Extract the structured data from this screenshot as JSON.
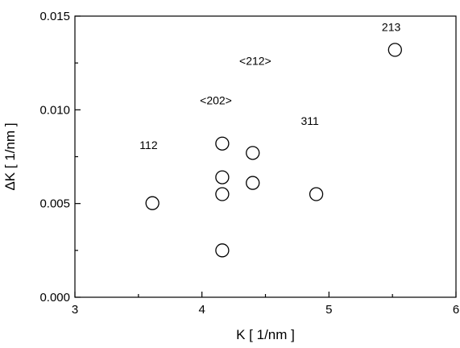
{
  "chart_data": {
    "type": "scatter",
    "xlabel": "K [ 1/nm ]",
    "ylabel": "ΔK [ 1/nm ]",
    "xlim": [
      3,
      6
    ],
    "ylim": [
      0.0,
      0.015
    ],
    "xticks": [
      3,
      4,
      5,
      6
    ],
    "xtick_labels": [
      "3",
      "4",
      "5",
      "6"
    ],
    "yticks": [
      0.0,
      0.005,
      0.01,
      0.015
    ],
    "ytick_labels": [
      "0.000",
      "0.005",
      "0.010",
      "0.015"
    ],
    "grid": false,
    "marker": "open-circle",
    "points": [
      {
        "x": 3.61,
        "y": 0.00502
      },
      {
        "x": 4.16,
        "y": 0.0025
      },
      {
        "x": 4.16,
        "y": 0.0055
      },
      {
        "x": 4.16,
        "y": 0.0064
      },
      {
        "x": 4.16,
        "y": 0.0082
      },
      {
        "x": 4.4,
        "y": 0.0061
      },
      {
        "x": 4.4,
        "y": 0.0077
      },
      {
        "x": 4.9,
        "y": 0.0055
      },
      {
        "x": 5.52,
        "y": 0.0132
      }
    ],
    "annotations": [
      {
        "text": "112",
        "x": 3.58,
        "y": 0.0079
      },
      {
        "text": "<202>",
        "x": 4.11,
        "y": 0.0103
      },
      {
        "text": "<212>",
        "x": 4.42,
        "y": 0.0124
      },
      {
        "text": "311",
        "x": 4.85,
        "y": 0.0092
      },
      {
        "text": "213",
        "x": 5.49,
        "y": 0.0142
      }
    ]
  }
}
